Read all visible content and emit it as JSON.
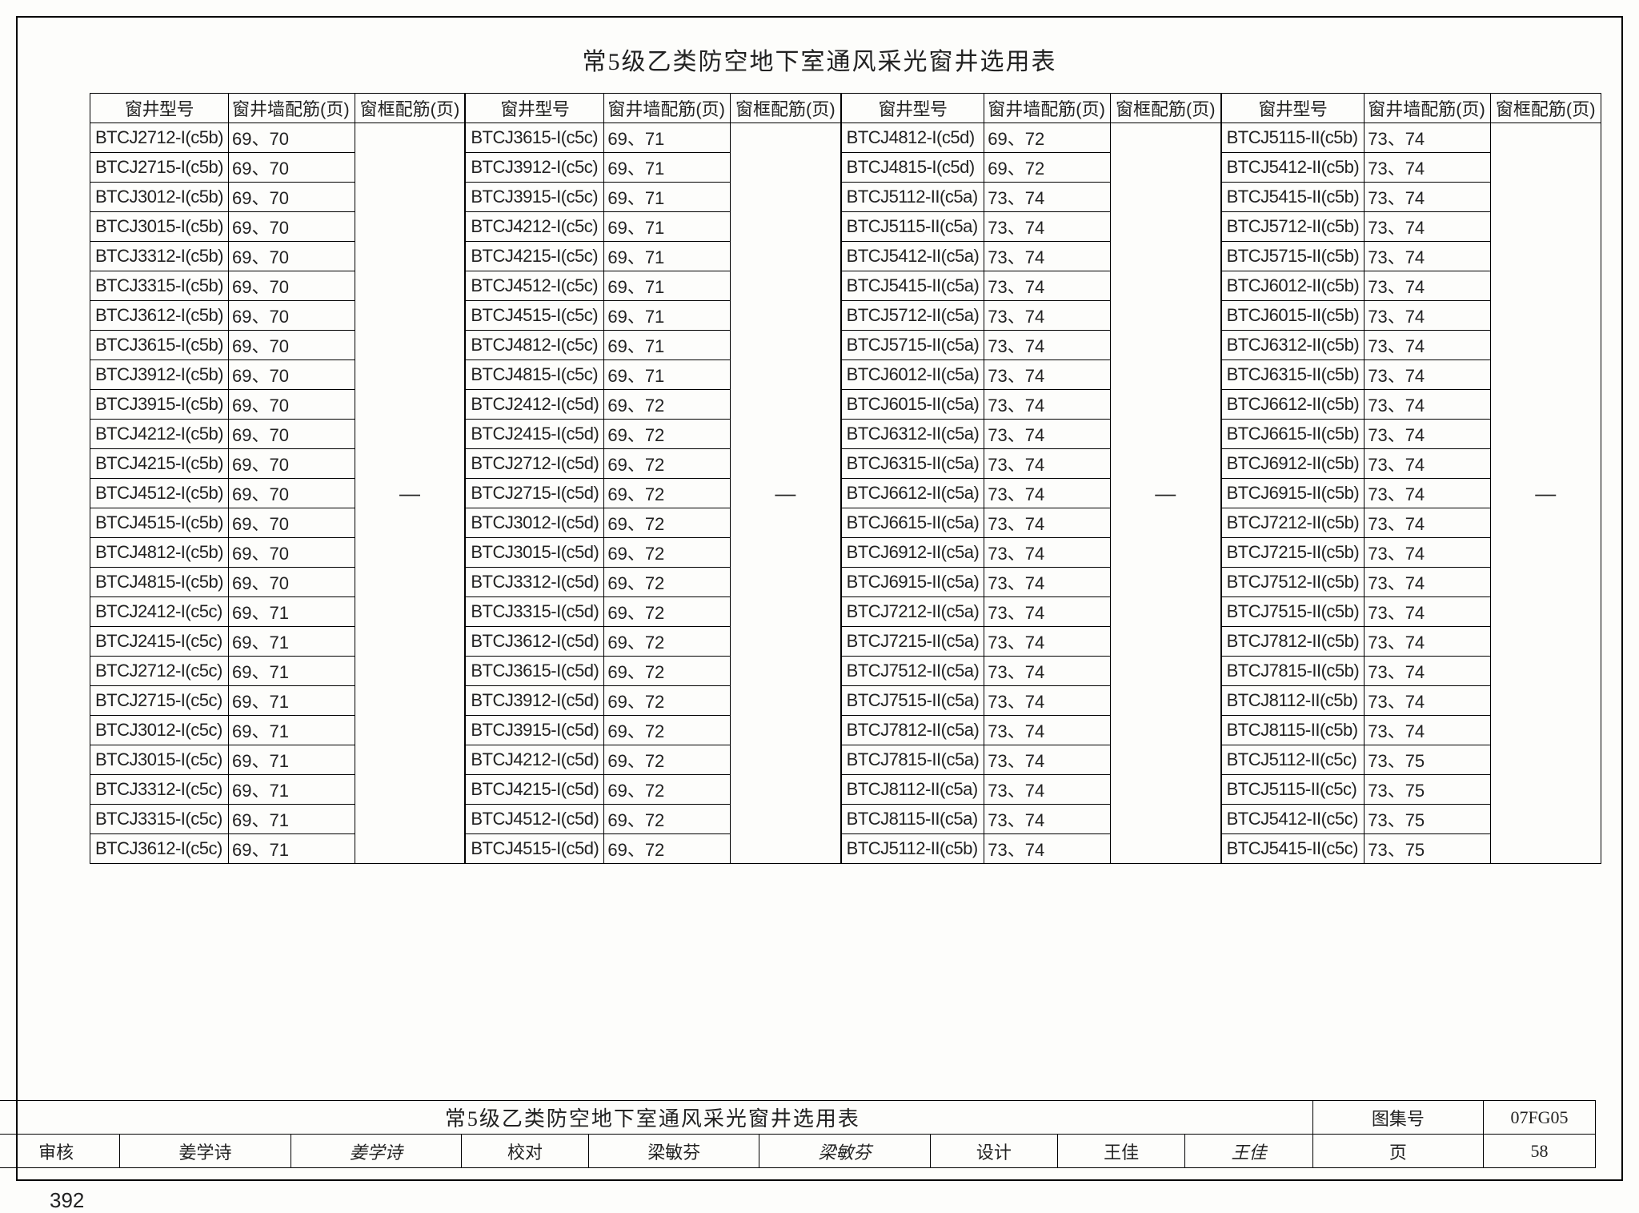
{
  "title": "常5级乙类防空地下室通风采光窗井选用表",
  "headers": {
    "model": "窗井型号",
    "wall": "窗井墙配筋(页)",
    "frame": "窗框配筋(页)"
  },
  "dash": "—",
  "columns": [
    {
      "frame": "—",
      "rows": [
        {
          "m": "BTCJ2712-I(c5b)",
          "w": "69、70"
        },
        {
          "m": "BTCJ2715-I(c5b)",
          "w": "69、70"
        },
        {
          "m": "BTCJ3012-I(c5b)",
          "w": "69、70"
        },
        {
          "m": "BTCJ3015-I(c5b)",
          "w": "69、70"
        },
        {
          "m": "BTCJ3312-I(c5b)",
          "w": "69、70"
        },
        {
          "m": "BTCJ3315-I(c5b)",
          "w": "69、70"
        },
        {
          "m": "BTCJ3612-I(c5b)",
          "w": "69、70"
        },
        {
          "m": "BTCJ3615-I(c5b)",
          "w": "69、70"
        },
        {
          "m": "BTCJ3912-I(c5b)",
          "w": "69、70"
        },
        {
          "m": "BTCJ3915-I(c5b)",
          "w": "69、70"
        },
        {
          "m": "BTCJ4212-I(c5b)",
          "w": "69、70"
        },
        {
          "m": "BTCJ4215-I(c5b)",
          "w": "69、70"
        },
        {
          "m": "BTCJ4512-I(c5b)",
          "w": "69、70"
        },
        {
          "m": "BTCJ4515-I(c5b)",
          "w": "69、70"
        },
        {
          "m": "BTCJ4812-I(c5b)",
          "w": "69、70"
        },
        {
          "m": "BTCJ4815-I(c5b)",
          "w": "69、70"
        },
        {
          "m": "BTCJ2412-I(c5c)",
          "w": "69、71"
        },
        {
          "m": "BTCJ2415-I(c5c)",
          "w": "69、71"
        },
        {
          "m": "BTCJ2712-I(c5c)",
          "w": "69、71"
        },
        {
          "m": "BTCJ2715-I(c5c)",
          "w": "69、71"
        },
        {
          "m": "BTCJ3012-I(c5c)",
          "w": "69、71"
        },
        {
          "m": "BTCJ3015-I(c5c)",
          "w": "69、71"
        },
        {
          "m": "BTCJ3312-I(c5c)",
          "w": "69、71"
        },
        {
          "m": "BTCJ3315-I(c5c)",
          "w": "69、71"
        },
        {
          "m": "BTCJ3612-I(c5c)",
          "w": "69、71"
        }
      ]
    },
    {
      "frame": "—",
      "rows": [
        {
          "m": "BTCJ3615-I(c5c)",
          "w": "69、71"
        },
        {
          "m": "BTCJ3912-I(c5c)",
          "w": "69、71"
        },
        {
          "m": "BTCJ3915-I(c5c)",
          "w": "69、71"
        },
        {
          "m": "BTCJ4212-I(c5c)",
          "w": "69、71"
        },
        {
          "m": "BTCJ4215-I(c5c)",
          "w": "69、71"
        },
        {
          "m": "BTCJ4512-I(c5c)",
          "w": "69、71"
        },
        {
          "m": "BTCJ4515-I(c5c)",
          "w": "69、71"
        },
        {
          "m": "BTCJ4812-I(c5c)",
          "w": "69、71"
        },
        {
          "m": "BTCJ4815-I(c5c)",
          "w": "69、71"
        },
        {
          "m": "BTCJ2412-I(c5d)",
          "w": "69、72"
        },
        {
          "m": "BTCJ2415-I(c5d)",
          "w": "69、72"
        },
        {
          "m": "BTCJ2712-I(c5d)",
          "w": "69、72"
        },
        {
          "m": "BTCJ2715-I(c5d)",
          "w": "69、72"
        },
        {
          "m": "BTCJ3012-I(c5d)",
          "w": "69、72"
        },
        {
          "m": "BTCJ3015-I(c5d)",
          "w": "69、72"
        },
        {
          "m": "BTCJ3312-I(c5d)",
          "w": "69、72"
        },
        {
          "m": "BTCJ3315-I(c5d)",
          "w": "69、72"
        },
        {
          "m": "BTCJ3612-I(c5d)",
          "w": "69、72"
        },
        {
          "m": "BTCJ3615-I(c5d)",
          "w": "69、72"
        },
        {
          "m": "BTCJ3912-I(c5d)",
          "w": "69、72"
        },
        {
          "m": "BTCJ3915-I(c5d)",
          "w": "69、72"
        },
        {
          "m": "BTCJ4212-I(c5d)",
          "w": "69、72"
        },
        {
          "m": "BTCJ4215-I(c5d)",
          "w": "69、72"
        },
        {
          "m": "BTCJ4512-I(c5d)",
          "w": "69、72"
        },
        {
          "m": "BTCJ4515-I(c5d)",
          "w": "69、72"
        }
      ]
    },
    {
      "frame": "—",
      "rows": [
        {
          "m": "BTCJ4812-I(c5d)",
          "w": "69、72"
        },
        {
          "m": "BTCJ4815-I(c5d)",
          "w": "69、72"
        },
        {
          "m": "BTCJ5112-II(c5a)",
          "w": "73、74"
        },
        {
          "m": "BTCJ5115-II(c5a)",
          "w": "73、74"
        },
        {
          "m": "BTCJ5412-II(c5a)",
          "w": "73、74"
        },
        {
          "m": "BTCJ5415-II(c5a)",
          "w": "73、74"
        },
        {
          "m": "BTCJ5712-II(c5a)",
          "w": "73、74"
        },
        {
          "m": "BTCJ5715-II(c5a)",
          "w": "73、74"
        },
        {
          "m": "BTCJ6012-II(c5a)",
          "w": "73、74"
        },
        {
          "m": "BTCJ6015-II(c5a)",
          "w": "73、74"
        },
        {
          "m": "BTCJ6312-II(c5a)",
          "w": "73、74"
        },
        {
          "m": "BTCJ6315-II(c5a)",
          "w": "73、74"
        },
        {
          "m": "BTCJ6612-II(c5a)",
          "w": "73、74"
        },
        {
          "m": "BTCJ6615-II(c5a)",
          "w": "73、74"
        },
        {
          "m": "BTCJ6912-II(c5a)",
          "w": "73、74"
        },
        {
          "m": "BTCJ6915-II(c5a)",
          "w": "73、74"
        },
        {
          "m": "BTCJ7212-II(c5a)",
          "w": "73、74"
        },
        {
          "m": "BTCJ7215-II(c5a)",
          "w": "73、74"
        },
        {
          "m": "BTCJ7512-II(c5a)",
          "w": "73、74"
        },
        {
          "m": "BTCJ7515-II(c5a)",
          "w": "73、74"
        },
        {
          "m": "BTCJ7812-II(c5a)",
          "w": "73、74"
        },
        {
          "m": "BTCJ7815-II(c5a)",
          "w": "73、74"
        },
        {
          "m": "BTCJ8112-II(c5a)",
          "w": "73、74"
        },
        {
          "m": "BTCJ8115-II(c5a)",
          "w": "73、74"
        },
        {
          "m": "BTCJ5112-II(c5b)",
          "w": "73、74"
        }
      ]
    },
    {
      "frame": "—",
      "rows": [
        {
          "m": "BTCJ5115-II(c5b)",
          "w": "73、74"
        },
        {
          "m": "BTCJ5412-II(c5b)",
          "w": "73、74"
        },
        {
          "m": "BTCJ5415-II(c5b)",
          "w": "73、74"
        },
        {
          "m": "BTCJ5712-II(c5b)",
          "w": "73、74"
        },
        {
          "m": "BTCJ5715-II(c5b)",
          "w": "73、74"
        },
        {
          "m": "BTCJ6012-II(c5b)",
          "w": "73、74"
        },
        {
          "m": "BTCJ6015-II(c5b)",
          "w": "73、74"
        },
        {
          "m": "BTCJ6312-II(c5b)",
          "w": "73、74"
        },
        {
          "m": "BTCJ6315-II(c5b)",
          "w": "73、74"
        },
        {
          "m": "BTCJ6612-II(c5b)",
          "w": "73、74"
        },
        {
          "m": "BTCJ6615-II(c5b)",
          "w": "73、74"
        },
        {
          "m": "BTCJ6912-II(c5b)",
          "w": "73、74"
        },
        {
          "m": "BTCJ6915-II(c5b)",
          "w": "73、74"
        },
        {
          "m": "BTCJ7212-II(c5b)",
          "w": "73、74"
        },
        {
          "m": "BTCJ7215-II(c5b)",
          "w": "73、74"
        },
        {
          "m": "BTCJ7512-II(c5b)",
          "w": "73、74"
        },
        {
          "m": "BTCJ7515-II(c5b)",
          "w": "73、74"
        },
        {
          "m": "BTCJ7812-II(c5b)",
          "w": "73、74"
        },
        {
          "m": "BTCJ7815-II(c5b)",
          "w": "73、74"
        },
        {
          "m": "BTCJ8112-II(c5b)",
          "w": "73、74"
        },
        {
          "m": "BTCJ8115-II(c5b)",
          "w": "73、74"
        },
        {
          "m": "BTCJ5112-II(c5c)",
          "w": "73、75"
        },
        {
          "m": "BTCJ5115-II(c5c)",
          "w": "73、75"
        },
        {
          "m": "BTCJ5412-II(c5c)",
          "w": "73、75"
        },
        {
          "m": "BTCJ5415-II(c5c)",
          "w": "73、75"
        }
      ]
    }
  ],
  "titleblock": {
    "title": "常5级乙类防空地下室通风采光窗井选用表",
    "atlas_label": "图集号",
    "atlas_value": "07FG05",
    "review_label": "审核",
    "review_name": "姜学诗",
    "review_sig": "姜学诗",
    "check_label": "校对",
    "check_name": "梁敏芬",
    "check_sig": "梁敏芬",
    "design_label": "设计",
    "design_name": "王佳",
    "design_sig": "王佳",
    "page_label": "页",
    "page_value": "58"
  },
  "outer_page": "392"
}
